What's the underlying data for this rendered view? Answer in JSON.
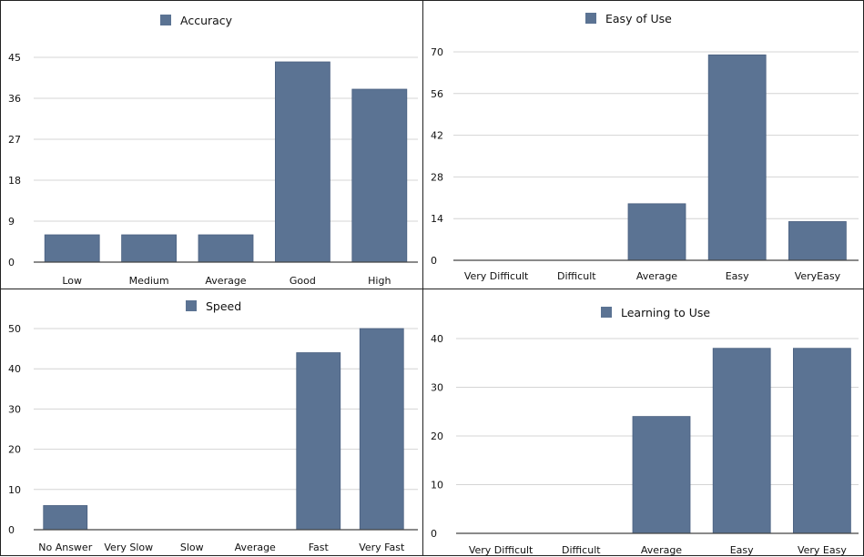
{
  "chart_data": [
    {
      "type": "bar",
      "title": "Accuracy",
      "categories": [
        "Low",
        "Medium",
        "Average",
        "Good",
        "High"
      ],
      "series": [
        {
          "name": "Accuracy",
          "values": [
            6,
            6,
            6,
            44,
            38
          ]
        }
      ],
      "yticks": [
        "0",
        "9",
        "18",
        "27",
        "36",
        "45"
      ],
      "ylim": [
        0,
        45
      ],
      "grid": true,
      "legend": "top-center",
      "color": "#5b7393"
    },
    {
      "type": "bar",
      "title": "Easy of Use",
      "categories": [
        "Very Difficult",
        "Difficult",
        "Average",
        "Easy",
        "VeryEasy"
      ],
      "series": [
        {
          "name": "Easy of Use",
          "values": [
            0,
            0,
            19,
            69,
            13
          ]
        }
      ],
      "yticks": [
        "0",
        "14",
        "28",
        "42",
        "56",
        "70"
      ],
      "ylim": [
        0,
        70
      ],
      "grid": true,
      "legend": "top-center",
      "color": "#5b7393"
    },
    {
      "type": "bar",
      "title": "Speed",
      "categories": [
        "No Answer",
        "Very Slow",
        "Slow",
        "Average",
        "Fast",
        "Very Fast"
      ],
      "series": [
        {
          "name": "Speed",
          "values": [
            6,
            0,
            0,
            0,
            44,
            50
          ]
        }
      ],
      "yticks": [
        "0",
        "10",
        "20",
        "30",
        "40",
        "50"
      ],
      "ylim": [
        0,
        50
      ],
      "grid": true,
      "legend": "top-center",
      "color": "#5b7393"
    },
    {
      "type": "bar",
      "title": "Learning to Use",
      "categories": [
        "Very Difficult",
        "Difficult",
        "Average",
        "Easy",
        "Very Easy"
      ],
      "series": [
        {
          "name": "Learning to Use",
          "values": [
            0,
            0,
            24,
            38,
            38
          ]
        }
      ],
      "yticks": [
        "0",
        "10",
        "20",
        "30",
        "40"
      ],
      "ylim": [
        0,
        40
      ],
      "grid": true,
      "legend": "top-center",
      "color": "#5b7393"
    }
  ]
}
